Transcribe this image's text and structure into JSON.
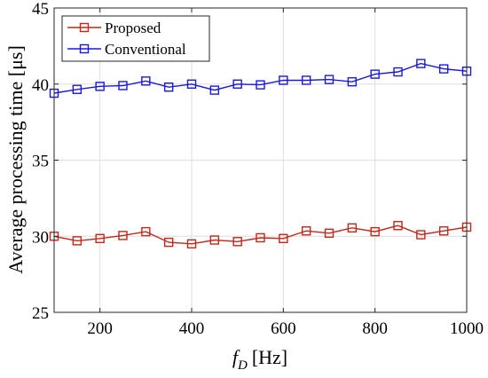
{
  "chart_data": {
    "type": "line",
    "title": "",
    "xlabel_main": "f",
    "xlabel_sub": "D",
    "xlabel_unit": "[Hz]",
    "ylabel": "Average processing time [μs]",
    "x": [
      100,
      150,
      200,
      250,
      300,
      350,
      400,
      450,
      500,
      550,
      600,
      650,
      700,
      750,
      800,
      850,
      900,
      950,
      1000
    ],
    "xlim": [
      100,
      1000
    ],
    "ylim": [
      25,
      45
    ],
    "xticks": [
      200,
      400,
      600,
      800,
      1000
    ],
    "yticks": [
      25,
      30,
      35,
      40,
      45
    ],
    "grid": true,
    "legend_position": "top-left",
    "series": [
      {
        "name": "Proposed",
        "color": "#c0281a",
        "marker": "square",
        "values": [
          30.0,
          29.7,
          29.85,
          30.05,
          30.3,
          29.6,
          29.5,
          29.75,
          29.65,
          29.9,
          29.85,
          30.35,
          30.2,
          30.55,
          30.3,
          30.7,
          30.1,
          30.35,
          30.6
        ]
      },
      {
        "name": "Conventional",
        "color": "#1a1adc",
        "marker": "square",
        "values": [
          39.4,
          39.65,
          39.85,
          39.9,
          40.2,
          39.8,
          40.0,
          39.6,
          40.0,
          39.95,
          40.25,
          40.25,
          40.3,
          40.15,
          40.65,
          40.8,
          41.35,
          41.0,
          40.85
        ]
      }
    ]
  }
}
